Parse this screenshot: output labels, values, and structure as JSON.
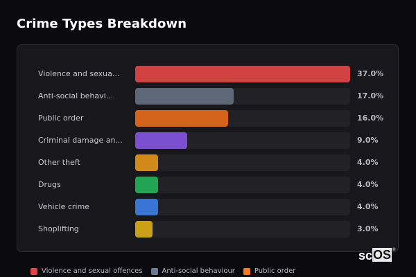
{
  "header": {
    "title": "Crime Types Breakdown"
  },
  "chart_data": {
    "type": "bar",
    "orientation": "horizontal",
    "title": "Crime Types Breakdown",
    "categories": [
      "Violence and sexual offences",
      "Anti-social behaviour",
      "Public order",
      "Criminal damage and arson",
      "Other theft",
      "Drugs",
      "Vehicle crime",
      "Shoplifting"
    ],
    "display_labels": [
      "Violence and sexua...",
      "Anti-social behavi...",
      "Public order",
      "Criminal damage an...",
      "Other theft",
      "Drugs",
      "Vehicle crime",
      "Shoplifting"
    ],
    "values": [
      37.0,
      17.0,
      16.0,
      9.0,
      4.0,
      4.0,
      4.0,
      3.0
    ],
    "value_labels": [
      "37.0%",
      "17.0%",
      "16.0%",
      "9.0%",
      "4.0%",
      "4.0%",
      "4.0%",
      "3.0%"
    ],
    "colors": [
      "#d14343",
      "#5c6878",
      "#d3641a",
      "#7b4fd0",
      "#d18a1a",
      "#23a354",
      "#3a74d4",
      "#caa014"
    ],
    "xlabel": "",
    "ylabel": "",
    "xlim": [
      0,
      37
    ],
    "grid": false,
    "legend": {
      "position": "bottom",
      "entries": [
        {
          "label": "Violence and sexual offences",
          "color": "#e04444"
        },
        {
          "label": "Anti-social behaviour",
          "color": "#6b7a90"
        },
        {
          "label": "Public order",
          "color": "#f07a20"
        }
      ]
    }
  },
  "rows": [
    {
      "label": "Violence and sexua...",
      "value": "37.0%",
      "pct": 100,
      "color": "#d14343"
    },
    {
      "label": "Anti-social behavi...",
      "value": "17.0%",
      "pct": 45.9,
      "color": "#5c6878"
    },
    {
      "label": "Public order",
      "value": "16.0%",
      "pct": 43.2,
      "color": "#d3641a"
    },
    {
      "label": "Criminal damage an...",
      "value": "9.0%",
      "pct": 24.3,
      "color": "#7b4fd0"
    },
    {
      "label": "Other theft",
      "value": "4.0%",
      "pct": 10.8,
      "color": "#d18a1a"
    },
    {
      "label": "Drugs",
      "value": "4.0%",
      "pct": 10.8,
      "color": "#23a354"
    },
    {
      "label": "Vehicle crime",
      "value": "4.0%",
      "pct": 10.8,
      "color": "#3a74d4"
    },
    {
      "label": "Shoplifting",
      "value": "3.0%",
      "pct": 8.1,
      "color": "#caa014"
    }
  ],
  "legend": [
    {
      "label": "Violence and sexual offences",
      "color": "#e04444"
    },
    {
      "label": "Anti-social behaviour",
      "color": "#6b7a90"
    },
    {
      "label": "Public order",
      "color": "#f07a20"
    }
  ],
  "logo": {
    "sc": "sc",
    "os": "OS",
    "reg": "®"
  }
}
